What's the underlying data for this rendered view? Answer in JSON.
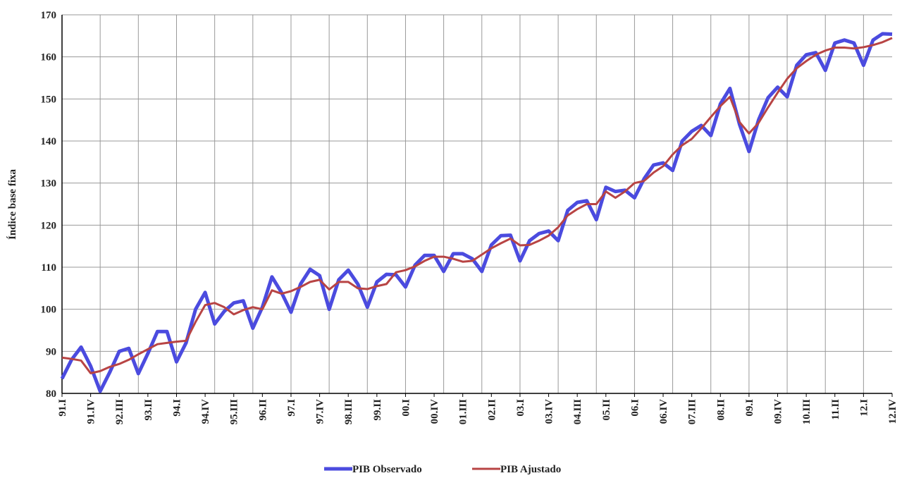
{
  "chart_data": {
    "type": "line",
    "y_label": "Índice base fixa",
    "categories": [
      "91.I",
      null,
      null,
      "91.IV",
      null,
      null,
      "92.III",
      null,
      null,
      "93.II",
      null,
      null,
      "94.I",
      null,
      null,
      "94.IV",
      null,
      null,
      "95.III",
      null,
      null,
      "96.II",
      null,
      null,
      "97.I",
      null,
      null,
      "97.IV",
      null,
      null,
      "98.III",
      null,
      null,
      "99.II",
      null,
      null,
      "00.I",
      null,
      null,
      "00.IV",
      null,
      null,
      "01.III",
      null,
      null,
      "02.II",
      null,
      null,
      "03.I",
      null,
      null,
      "03.IV",
      null,
      null,
      "04.III",
      null,
      null,
      "05.II",
      null,
      null,
      "06.I",
      null,
      null,
      "06.IV",
      null,
      null,
      "07.III",
      null,
      null,
      "08.II",
      null,
      null,
      "09.I",
      null,
      null,
      "09.IV",
      null,
      null,
      "10.III",
      null,
      null,
      "11.II",
      null,
      null,
      "12.I",
      null,
      null,
      "12.IV"
    ],
    "series": [
      {
        "name": "PIB Observado",
        "color": "#4b4bdf",
        "values": [
          83.5,
          88,
          91,
          86.5,
          80.5,
          85,
          90,
          90.7,
          84.7,
          89.5,
          94.7,
          94.7,
          87.5,
          92,
          100,
          104,
          96.5,
          99.5,
          101.5,
          102,
          95.5,
          100.5,
          107.7,
          104,
          99.3,
          106,
          109.5,
          108,
          100,
          107,
          109.3,
          106,
          100.5,
          106.5,
          108.3,
          108.2,
          105.3,
          110.5,
          112.8,
          112.8,
          109,
          113.2,
          113.2,
          112,
          109,
          115.3,
          117.5,
          117.6,
          111.5,
          116.3,
          118,
          118.6,
          116.3,
          123.5,
          125.4,
          125.8,
          121.3,
          129,
          128,
          128.3,
          126.5,
          131,
          134.3,
          134.8,
          133,
          140,
          142.3,
          143.7,
          141.3,
          148.8,
          152.5,
          144,
          137.5,
          145,
          150.3,
          152.8,
          150.5,
          158,
          160.5,
          161,
          156.8,
          163.3,
          164,
          163.3,
          158,
          164,
          165.5,
          165.4
        ]
      },
      {
        "name": "PIB Ajustado",
        "color": "#b84444",
        "values": [
          88.5,
          88.2,
          87.8,
          84.8,
          85.3,
          86.3,
          87,
          88,
          89.3,
          90.5,
          91.7,
          92,
          92.3,
          92.5,
          97,
          101,
          101.5,
          100.5,
          98.8,
          99.8,
          100.5,
          100,
          104.5,
          103.7,
          104.3,
          105.3,
          106.5,
          107,
          104.7,
          106.5,
          106.5,
          105,
          104.8,
          105.5,
          106,
          108.8,
          109.3,
          110.2,
          111.5,
          112.5,
          112.5,
          112,
          111.3,
          111.5,
          113,
          114.5,
          115.7,
          116.8,
          115.2,
          115.3,
          116.3,
          117.5,
          119.5,
          122.3,
          123.8,
          125,
          125,
          128,
          126.5,
          128,
          130,
          130.5,
          132.5,
          134,
          136.8,
          139,
          140.5,
          143,
          145.7,
          148.3,
          150.5,
          144.5,
          141.8,
          144.3,
          148,
          151.5,
          154.8,
          157.3,
          159,
          160.5,
          161.5,
          162.2,
          162.2,
          162,
          162.3,
          162.8,
          163.5,
          164.5
        ]
      }
    ],
    "ylim": [
      80,
      170
    ],
    "yticks": [
      80,
      90,
      100,
      110,
      120,
      130,
      140,
      150,
      160,
      170
    ],
    "grid": true
  }
}
